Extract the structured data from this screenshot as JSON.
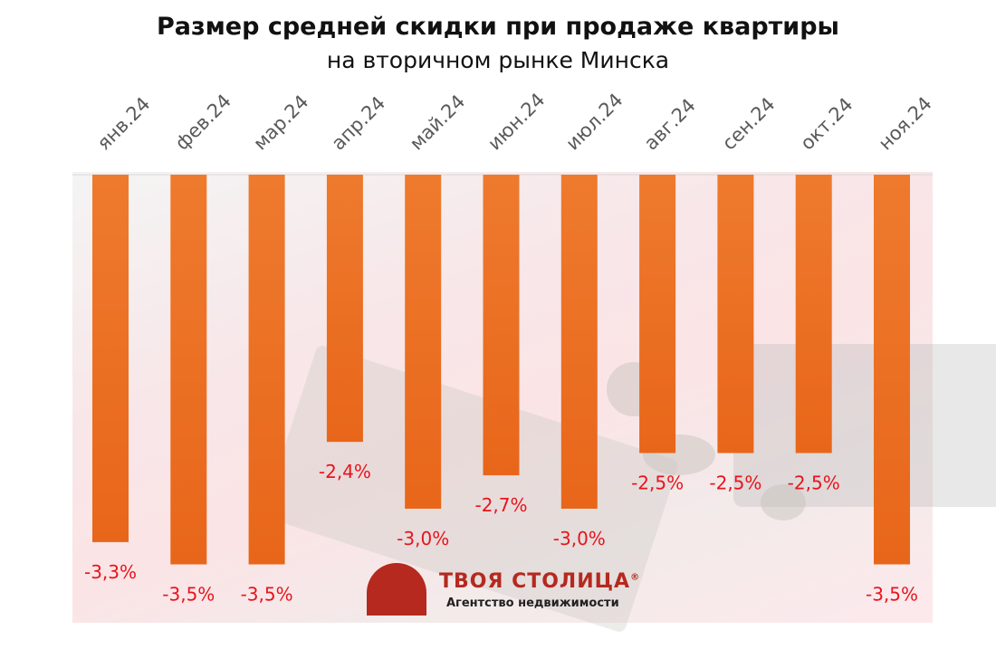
{
  "chart_data": {
    "type": "bar",
    "title": "Размер средней скидки при продаже квартиры",
    "subtitle": "на вторичном рынке Минска",
    "categories": [
      "янв.24",
      "фев.24",
      "мар.24",
      "апр.24",
      "май.24",
      "июн.24",
      "июл.24",
      "авг.24",
      "сен.24",
      "окт.24",
      "ноя.24"
    ],
    "values": [
      -3.3,
      -3.5,
      -3.5,
      -2.4,
      -3.0,
      -2.7,
      -3.0,
      -2.5,
      -2.5,
      -2.5,
      -3.5
    ],
    "data_labels": [
      "-3,3%",
      "-3,5%",
      "-3,5%",
      "-2,4%",
      "-3,0%",
      "-2,7%",
      "-3,0%",
      "-2,5%",
      "-2,5%",
      "-2,5%",
      "-3,5%"
    ],
    "ylim": [
      -4.0,
      0
    ],
    "x_axis_position": "top",
    "grid": false,
    "colors": {
      "bar": "#ee7a2e",
      "bar_dark": "#e8661a",
      "label": "#e8141c"
    }
  },
  "logo": {
    "name": "ТВОЯ СТОЛИЦА",
    "registered": "®",
    "tagline": "Агентство недвижимости",
    "color": "#b5291f"
  }
}
